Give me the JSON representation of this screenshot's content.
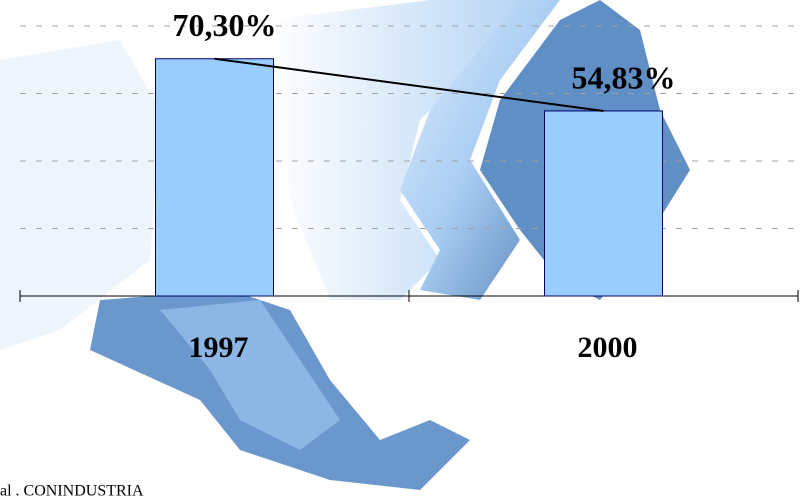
{
  "chart_data": {
    "type": "bar",
    "categories": [
      "1997",
      "2000"
    ],
    "values": [
      70.3,
      54.83
    ],
    "value_labels": [
      "70,30%",
      "54,83%"
    ],
    "color": "#99ccff",
    "ylim": [
      0,
      80
    ],
    "yticks": [
      0,
      20,
      40,
      60,
      80
    ],
    "grid": true,
    "connector": true,
    "source": "al . CONINDUSTRIA"
  }
}
